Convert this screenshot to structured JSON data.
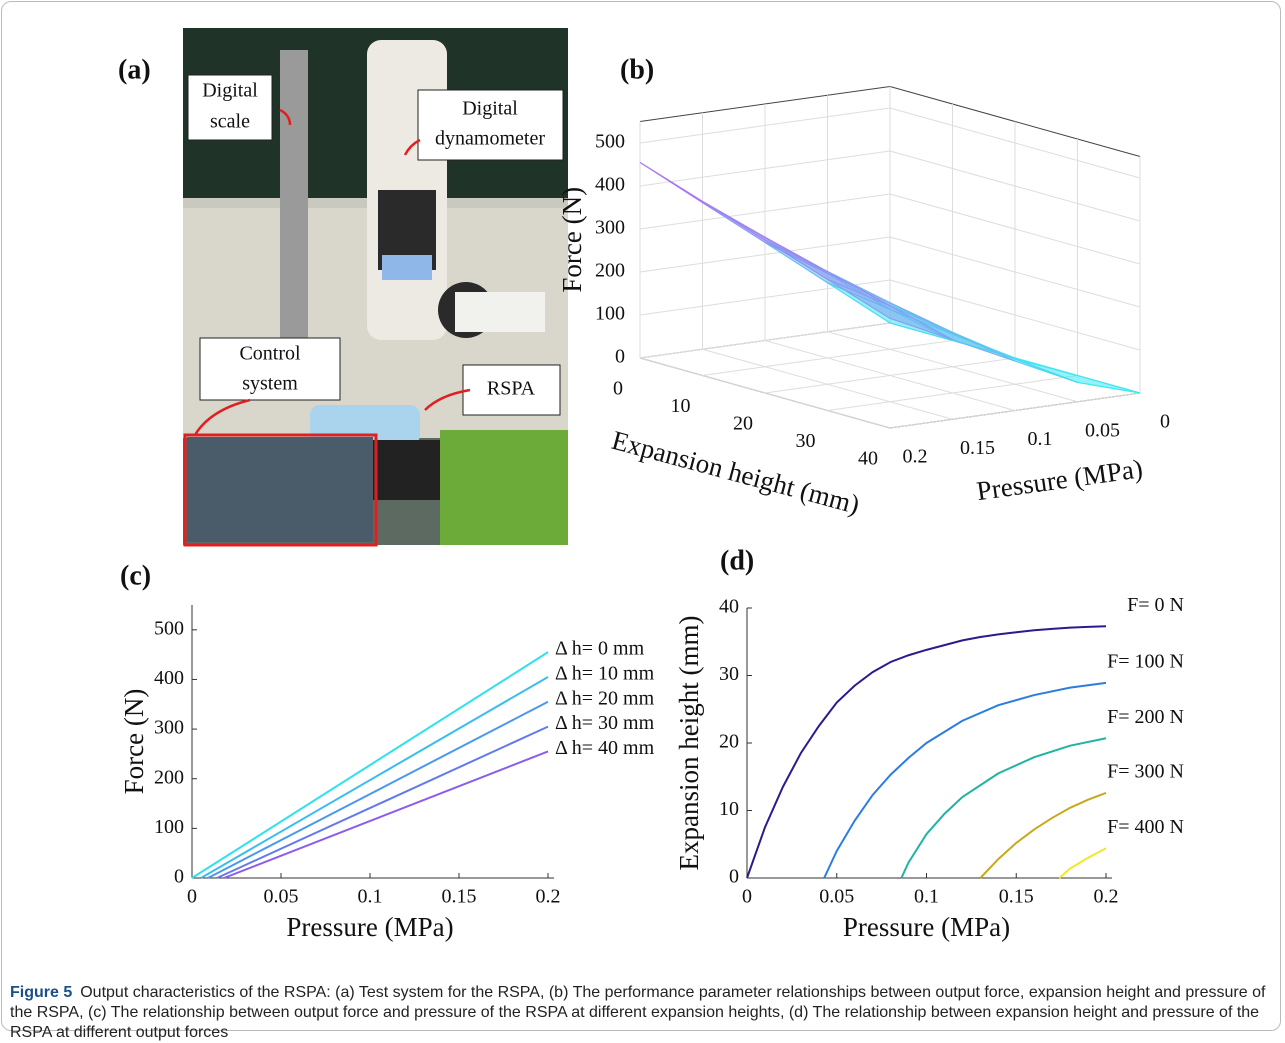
{
  "panels": {
    "a": {
      "label": "(a)",
      "annotations": [
        [
          "Digital",
          "scale"
        ],
        [
          "Digital",
          "dynamometer"
        ],
        [
          "Control",
          "system"
        ],
        [
          "RSPA"
        ]
      ]
    }
  },
  "chart_data": [
    {
      "type": "surface3d",
      "title": "(b)",
      "xlabel": "Pressure (MPa)",
      "ylabel": "Expansion height (mm)",
      "zlabel": "Force (N)",
      "x": [
        0,
        0.05,
        0.1,
        0.15,
        0.2
      ],
      "y": [
        0,
        10,
        20,
        30,
        40
      ],
      "z": [
        [
          0,
          114,
          228,
          341,
          455
        ],
        [
          0,
          93,
          197,
          301,
          405
        ],
        [
          0,
          76,
          169,
          262,
          355
        ],
        [
          0,
          59,
          141,
          223,
          305
        ],
        [
          0,
          45,
          115,
          185,
          255
        ]
      ],
      "xlim": [
        0,
        0.2
      ],
      "ylim": [
        0,
        40
      ],
      "zlim": [
        0,
        550
      ],
      "xticks": [
        0,
        0.05,
        0.1,
        0.15,
        0.2
      ],
      "yticks": [
        0,
        10,
        20,
        30,
        40
      ],
      "zticks": [
        0,
        100,
        200,
        300,
        400,
        500
      ],
      "colormap": [
        "#35f2f2",
        "#e23cf0"
      ],
      "grid": true
    },
    {
      "type": "line",
      "title": "(c)",
      "xlabel": "Pressure (MPa)",
      "ylabel": "Force (N)",
      "xlim": [
        0,
        0.2
      ],
      "ylim": [
        0,
        550
      ],
      "xticks": [
        0,
        0.05,
        0.1,
        0.15,
        0.2
      ],
      "yticks": [
        0,
        100,
        200,
        300,
        400,
        500
      ],
      "series": [
        {
          "name": "Δ h= 0 mm",
          "color": "#2fe0ef",
          "x": [
            0,
            0.2
          ],
          "values": [
            0,
            455
          ]
        },
        {
          "name": "Δ h= 10 mm",
          "color": "#3bbcef",
          "x": [
            0.005,
            0.2
          ],
          "values": [
            0,
            405
          ]
        },
        {
          "name": "Δ h= 20 mm",
          "color": "#4c98ee",
          "x": [
            0.009,
            0.2
          ],
          "values": [
            0,
            355
          ]
        },
        {
          "name": "Δ h= 30 mm",
          "color": "#6379ee",
          "x": [
            0.014,
            0.2
          ],
          "values": [
            0,
            305
          ]
        },
        {
          "name": "Δ h= 40 mm",
          "color": "#8a5cf0",
          "x": [
            0.018,
            0.2
          ],
          "values": [
            0,
            255
          ]
        }
      ]
    },
    {
      "type": "line",
      "title": "(d)",
      "xlabel": "Pressure (MPa)",
      "ylabel": "Expansion height (mm)",
      "xlim": [
        0,
        0.2
      ],
      "ylim": [
        0,
        40
      ],
      "xticks": [
        0,
        0.05,
        0.1,
        0.15,
        0.2
      ],
      "yticks": [
        0,
        10,
        20,
        30,
        40
      ],
      "series": [
        {
          "name": "F= 0 N",
          "color": "#2c1a8e",
          "x": [
            0,
            0.01,
            0.02,
            0.03,
            0.04,
            0.05,
            0.06,
            0.07,
            0.08,
            0.09,
            0.1,
            0.11,
            0.12,
            0.13,
            0.14,
            0.15,
            0.16,
            0.17,
            0.18,
            0.19,
            0.2
          ],
          "values": [
            0,
            7.5,
            13.5,
            18.5,
            22.5,
            26,
            28.5,
            30.5,
            32,
            33,
            33.8,
            34.5,
            35.2,
            35.7,
            36.1,
            36.4,
            36.7,
            36.9,
            37.1,
            37.2,
            37.3
          ]
        },
        {
          "name": "F= 100 N",
          "color": "#2b7de0",
          "x": [
            0.043,
            0.05,
            0.06,
            0.07,
            0.08,
            0.09,
            0.1,
            0.12,
            0.14,
            0.16,
            0.18,
            0.2
          ],
          "values": [
            0,
            4,
            8.5,
            12.3,
            15.3,
            17.8,
            20,
            23.3,
            25.6,
            27.1,
            28.2,
            28.9
          ]
        },
        {
          "name": "F= 200 N",
          "color": "#1fb3a3",
          "x": [
            0.086,
            0.09,
            0.1,
            0.11,
            0.12,
            0.14,
            0.16,
            0.18,
            0.2
          ],
          "values": [
            0,
            2.3,
            6.5,
            9.5,
            12,
            15.5,
            17.9,
            19.6,
            20.7
          ]
        },
        {
          "name": "F= 300 N",
          "color": "#c9a81b",
          "x": [
            0.13,
            0.14,
            0.15,
            0.16,
            0.17,
            0.18,
            0.19,
            0.2
          ],
          "values": [
            0,
            2.8,
            5.2,
            7.2,
            8.9,
            10.4,
            11.6,
            12.6
          ]
        },
        {
          "name": "F= 400 N",
          "color": "#f0e82a",
          "x": [
            0.174,
            0.18,
            0.19,
            0.2
          ],
          "values": [
            0,
            1.4,
            3,
            4.4
          ]
        }
      ]
    }
  ],
  "caption": {
    "label": "Figure 5",
    "text": "Output characteristics of the RSPA: (a) Test system for the RSPA, (b) The performance parameter relationships between output force, expansion height and pressure of the RSPA, (c) The relationship between output force and pressure of the RSPA at different expansion heights, (d) The relationship between expansion height and pressure of the RSPA at different output forces"
  }
}
